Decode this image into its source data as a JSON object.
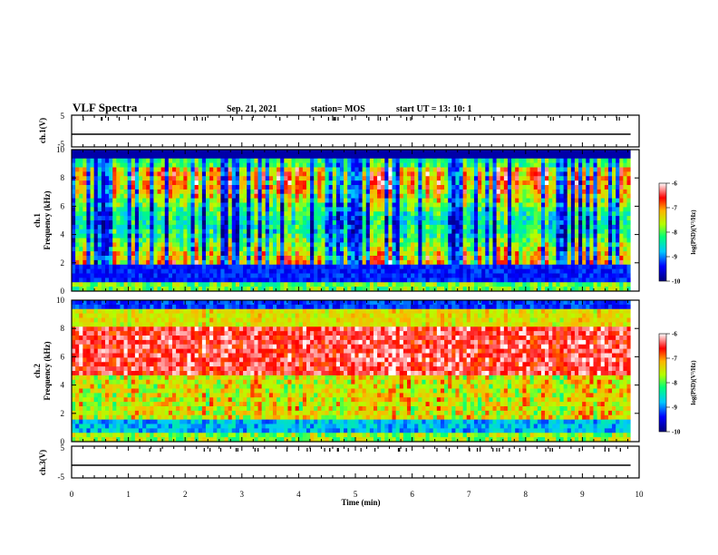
{
  "header": {
    "title": "VLF Spectra",
    "date": "Sep. 21, 2021",
    "station": "station= MOS",
    "start": "start  UT =   13: 10: 1"
  },
  "chart_data": [
    {
      "type": "line",
      "panel": "ch1-waveform",
      "ylabel": "ch.1(V)",
      "ylim": [
        -5,
        5
      ],
      "yticks": [
        "5",
        "-5"
      ],
      "x": [
        0,
        10
      ],
      "values": [
        -1,
        -1
      ]
    },
    {
      "type": "heatmap",
      "panel": "ch1-spectrogram",
      "ylabel_top": "ch.1",
      "ylabel": "Frequency (kHz)",
      "ylim": [
        0,
        10
      ],
      "yticks": [
        "0",
        "2",
        "4",
        "6",
        "8",
        "10"
      ],
      "xlim": [
        0,
        9.85
      ],
      "colorbar": {
        "label": "log(PSD)(V²/Hz)",
        "range": [
          -10,
          -6
        ],
        "ticks": [
          "-6",
          "-7",
          "-8",
          "-9",
          "-10"
        ]
      }
    },
    {
      "type": "heatmap",
      "panel": "ch2-spectrogram",
      "ylabel_top": "ch.2",
      "ylabel": "Frequency (kHz)",
      "ylim": [
        0,
        10
      ],
      "yticks": [
        "0",
        "2",
        "4",
        "6",
        "8",
        "10"
      ],
      "xlim": [
        0,
        9.85
      ],
      "colorbar": {
        "label": "log(PSD)(V²/Hz)",
        "range": [
          -10,
          -6
        ],
        "ticks": [
          "-6",
          "-7",
          "-8",
          "-9",
          "-10"
        ]
      }
    },
    {
      "type": "line",
      "panel": "ch3-waveform",
      "ylabel": "ch.3(V)",
      "ylim": [
        -5,
        5
      ],
      "yticks": [
        "5",
        "-5"
      ],
      "x": [
        0,
        10
      ],
      "values": [
        -1,
        -1
      ]
    }
  ],
  "xaxis": {
    "label": "Time (min)",
    "ticks": [
      "0",
      "1",
      "2",
      "3",
      "4",
      "5",
      "6",
      "7",
      "8",
      "9",
      "10"
    ],
    "range": [
      0,
      10
    ]
  },
  "colors": {
    "frame": "#000000",
    "colormap": [
      "#00007a",
      "#0000ff",
      "#00c8ff",
      "#00ff7a",
      "#b4ff00",
      "#ffb400",
      "#ff0000",
      "#ffffff"
    ]
  }
}
